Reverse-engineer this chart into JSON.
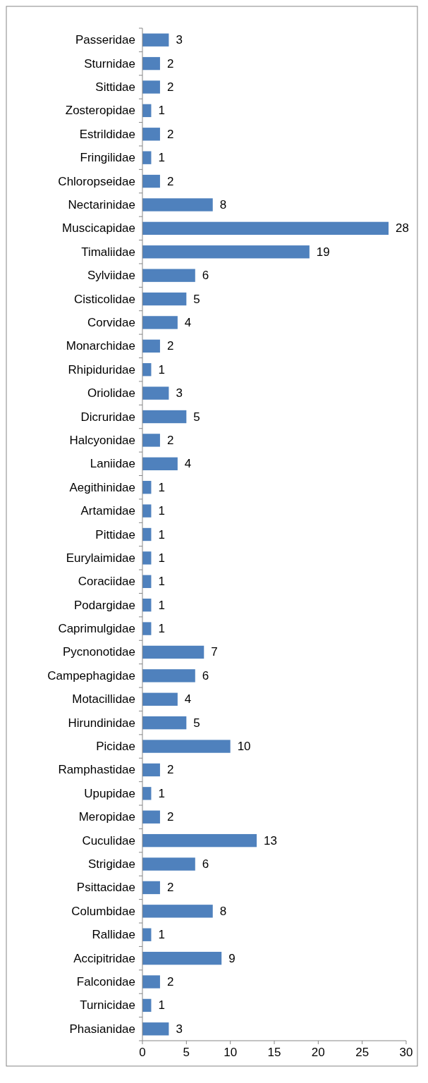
{
  "chart_data": {
    "type": "bar",
    "orientation": "horizontal",
    "categories": [
      "Passeridae",
      "Sturnidae",
      "Sittidae",
      "Zosteropidae",
      "Estrildidae",
      "Fringilidae",
      "Chloropseidae",
      "Nectarinidae",
      "Muscicapidae",
      "Timaliidae",
      "Sylviidae",
      "Cisticolidae",
      "Corvidae",
      "Monarchidae",
      "Rhipiduridae",
      "Oriolidae",
      "Dicruridae",
      "Halcyonidae",
      "Laniidae",
      "Aegithinidae",
      "Artamidae",
      "Pittidae",
      "Eurylaimidae",
      "Coraciidae",
      "Podargidae",
      "Caprimulgidae",
      "Pycnonotidae",
      "Campephagidae",
      "Motacillidae",
      "Hirundinidae",
      "Picidae",
      "Ramphastidae",
      "Upupidae",
      "Meropidae",
      "Cuculidae",
      "Strigidae",
      "Psittacidae",
      "Columbidae",
      "Rallidae",
      "Accipitridae",
      "Falconidae",
      "Turnicidae",
      "Phasianidae"
    ],
    "values": [
      3,
      2,
      2,
      1,
      2,
      1,
      2,
      8,
      28,
      19,
      6,
      5,
      4,
      2,
      1,
      3,
      5,
      2,
      4,
      1,
      1,
      1,
      1,
      1,
      1,
      1,
      7,
      6,
      4,
      5,
      10,
      2,
      1,
      2,
      13,
      6,
      2,
      8,
      1,
      9,
      2,
      1,
      3
    ],
    "color": "#4f81bd",
    "xlim": [
      0,
      30
    ],
    "xticks": [
      0,
      5,
      10,
      15,
      20,
      25,
      30
    ],
    "data_labels": true,
    "grid": false
  }
}
